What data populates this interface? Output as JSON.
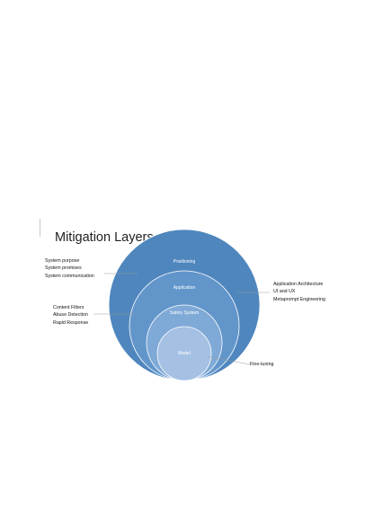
{
  "title": "Mitigation Layers",
  "layers": [
    {
      "label": "Positioning",
      "color": "#4f86be"
    },
    {
      "label": "Application",
      "color": "#6296cb"
    },
    {
      "label": "Safety System",
      "color": "#7fa9d6"
    },
    {
      "label": "Model",
      "color": "#a4c1e4"
    }
  ],
  "annotations": {
    "positioning": [
      "System purpose",
      "System promises",
      "System communication"
    ],
    "safety_system": [
      "Content Filters",
      "Abuse Detection",
      "Rapid Response"
    ],
    "application": [
      "Application Architecture",
      "UI and UX",
      "Metaprompt Engineering"
    ],
    "model": [
      "Fine-tuning"
    ]
  },
  "colors": {
    "leader_line": "#9a9a9a",
    "ring_stroke": "#ffffff"
  }
}
